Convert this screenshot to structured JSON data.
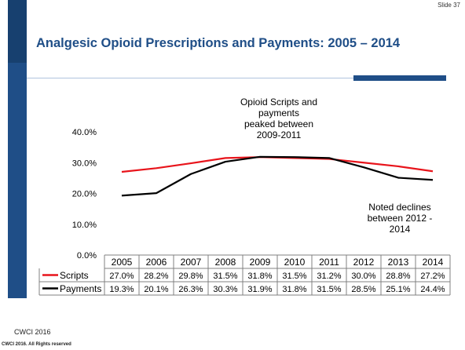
{
  "slide_label": "Slide 37",
  "title": "Analgesic Opioid Prescriptions and Payments:  2005 – 2014",
  "footer": {
    "line1": "CWCI 2016",
    "line2": "CWCI 2016.  All Rights reserved"
  },
  "chart_data": {
    "type": "line",
    "categories": [
      "2005",
      "2006",
      "2007",
      "2008",
      "2009",
      "2010",
      "2011",
      "2012",
      "2013",
      "2014"
    ],
    "series": [
      {
        "name": "Scripts",
        "color": "#e8141b",
        "values": [
          27.0,
          28.2,
          29.8,
          31.5,
          31.8,
          31.5,
          31.2,
          30.0,
          28.8,
          27.2
        ],
        "labels": [
          "27.0%",
          "28.2%",
          "29.8%",
          "31.5%",
          "31.8%",
          "31.5%",
          "31.2%",
          "30.0%",
          "28.8%",
          "27.2%"
        ]
      },
      {
        "name": "Payments",
        "color": "#000000",
        "values": [
          19.3,
          20.1,
          26.3,
          30.3,
          31.9,
          31.8,
          31.5,
          28.5,
          25.1,
          24.4
        ],
        "labels": [
          "19.3%",
          "20.1%",
          "26.3%",
          "30.3%",
          "31.9%",
          "31.8%",
          "31.5%",
          "28.5%",
          "25.1%",
          "24.4%"
        ]
      }
    ],
    "ylim": [
      0,
      40
    ],
    "yticks": [
      "0.0%",
      "10.0%",
      "20.0%",
      "30.0%",
      "40.0%"
    ],
    "grid": false,
    "data_table": true,
    "annotations": [
      {
        "lines": [
          "Opioid Scripts and",
          "payments",
          "peaked between",
          "2009-2011"
        ]
      },
      {
        "lines": [
          "Noted declines",
          "between 2012 -",
          "2014"
        ]
      }
    ]
  }
}
